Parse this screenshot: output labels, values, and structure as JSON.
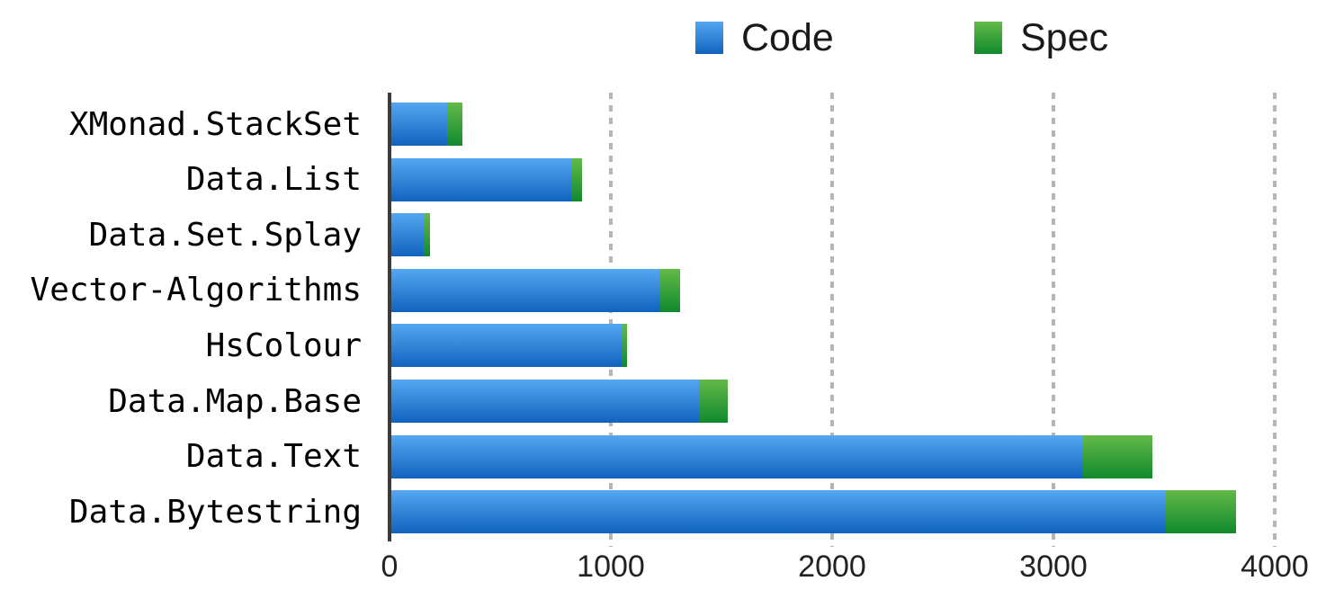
{
  "chart_data": {
    "type": "bar",
    "orientation": "horizontal",
    "stacked": true,
    "title": "",
    "xlabel": "",
    "ylabel": "",
    "categories": [
      "XMonad.StackSet",
      "Data.List",
      "Data.Set.Splay",
      "Vector-Algorithms",
      "HsColour",
      "Data.Map.Base",
      "Data.Text",
      "Data.Bytestring"
    ],
    "series": [
      {
        "name": "Code",
        "color_top": "#55a7f2",
        "color_bottom": "#1063bd",
        "values": [
          250,
          812,
          148,
          1215,
          1040,
          1390,
          3125,
          3500
        ]
      },
      {
        "name": "Spec",
        "color_top": "#63ba47",
        "color_bottom": "#108a2e",
        "values": [
          73,
          48,
          25,
          90,
          25,
          132,
          315,
          318
        ]
      }
    ],
    "totals": [
      323,
      860,
      173,
      1305,
      1065,
      1522,
      3440,
      3818
    ],
    "xlim": [
      0,
      4175
    ],
    "xticks": [
      0,
      1000,
      2000,
      3000,
      4000
    ],
    "xtick_labels": [
      "0",
      "1000",
      "2000",
      "3000",
      "4000"
    ],
    "grid": "vertical-dashed",
    "gridline_color": "#b5b5b5",
    "axis_color": "#3b3b3b",
    "legend_position": "top",
    "background_color": "#ffffff",
    "text_color": "#000000"
  }
}
